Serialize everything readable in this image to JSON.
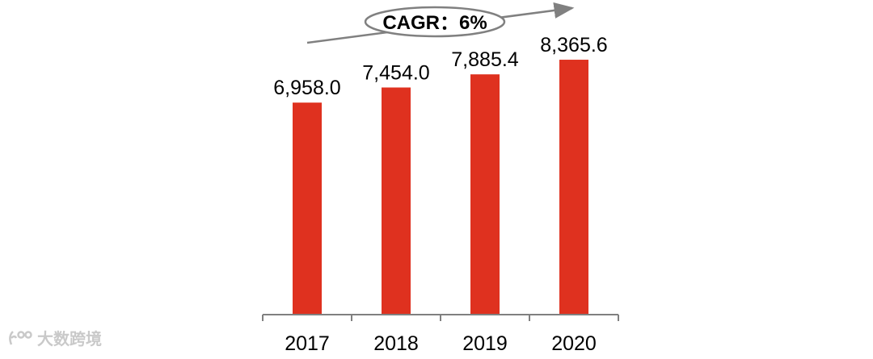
{
  "chart_data": {
    "type": "bar",
    "categories": [
      "2017",
      "2018",
      "2019",
      "2020"
    ],
    "values": [
      6958.0,
      7454.0,
      7885.4,
      8365.6
    ],
    "value_labels": [
      "6,958.0",
      "7,454.0",
      "7,885.4",
      "8,365.6"
    ],
    "title": "",
    "xlabel": "",
    "ylabel": "",
    "ylim": [
      0,
      9500
    ],
    "grid": false,
    "annotations": [
      {
        "text": "CAGR：6%",
        "style": "ellipse-callout-with-trend-arrow"
      }
    ],
    "colors": {
      "bar": "#df311f",
      "axis": "#808080",
      "text": "#000000",
      "arrow": "#808080"
    }
  },
  "watermark": {
    "text": "大数跨境",
    "icon": "watermark-logo-icon"
  }
}
